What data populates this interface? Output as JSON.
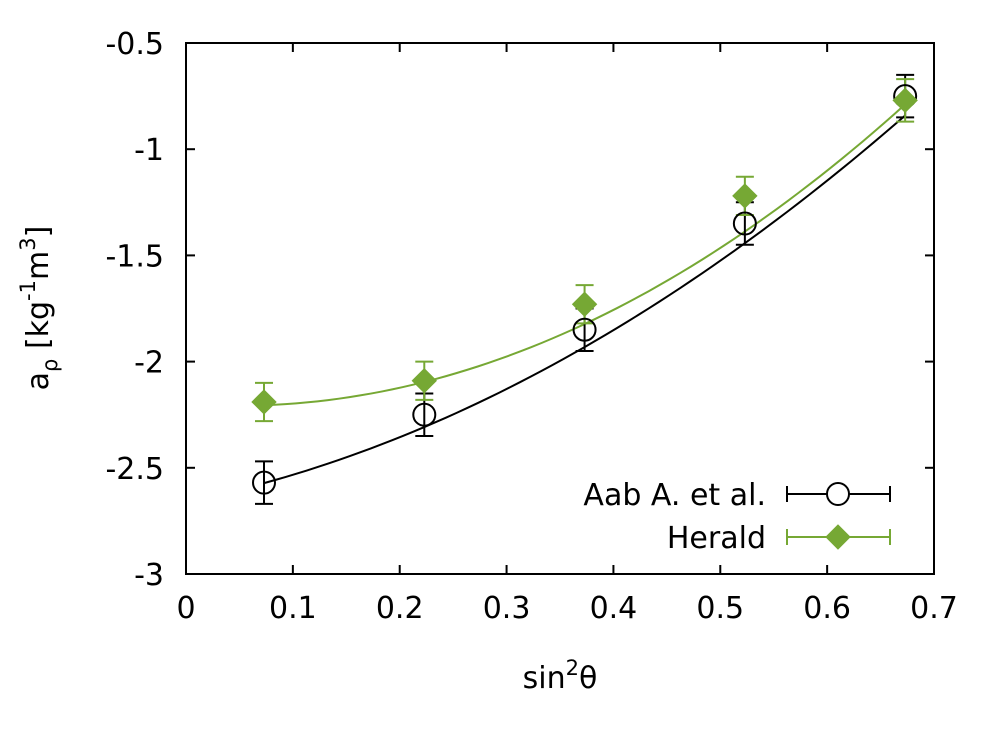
{
  "chart_data": {
    "type": "scatter",
    "title": "",
    "xlabel": {
      "base": "sin",
      "sup": "2",
      "tail": "θ"
    },
    "ylabel": {
      "a": "a",
      "sub": "ρ",
      "open": " [kg",
      "sup1": "-1",
      "mid": "m",
      "sup2": "3",
      "close": "]"
    },
    "xlim": [
      0,
      0.7
    ],
    "ylim": [
      -3,
      -0.5
    ],
    "xticks": [
      0,
      0.1,
      0.2,
      0.3,
      0.4,
      0.5,
      0.6,
      0.7
    ],
    "xtick_labels": [
      "0",
      "0.1",
      "0.2",
      "0.3",
      "0.4",
      "0.5",
      "0.6",
      "0.7"
    ],
    "yticks": [
      -3,
      -2.5,
      -2,
      -1.5,
      -1,
      -0.5
    ],
    "ytick_labels": [
      "-3",
      "-2.5",
      "-2",
      "-1.5",
      "-1",
      "-0.5"
    ],
    "grid": false,
    "legend_position": "bottom-right",
    "series": [
      {
        "name": "Aab A. et al.",
        "color": "#000000",
        "marker": "open-circle",
        "x": [
          0.073,
          0.223,
          0.373,
          0.523,
          0.673
        ],
        "y": [
          -2.57,
          -2.25,
          -1.85,
          -1.35,
          -0.75
        ],
        "yerr": [
          0.1,
          0.1,
          0.1,
          0.1,
          0.1
        ],
        "fit": {
          "x": [
            0.073,
            0.673
          ],
          "coef": [
            -2.66,
            1.02,
            2.5
          ]
        }
      },
      {
        "name": "Herald",
        "color": "#76a834",
        "marker": "filled-diamond",
        "x": [
          0.073,
          0.223,
          0.373,
          0.523,
          0.673
        ],
        "y": [
          -2.19,
          -2.09,
          -1.73,
          -1.22,
          -0.77
        ],
        "yerr": [
          0.09,
          0.09,
          0.09,
          0.09,
          0.1
        ],
        "fit": {
          "x": [
            0.073,
            0.673
          ],
          "coef": [
            -2.2,
            -0.34,
            3.62
          ]
        }
      }
    ]
  }
}
